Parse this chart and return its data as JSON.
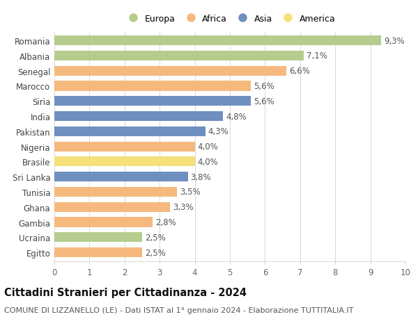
{
  "countries": [
    "Romania",
    "Albania",
    "Senegal",
    "Marocco",
    "Siria",
    "India",
    "Pakistan",
    "Nigeria",
    "Brasile",
    "Sri Lanka",
    "Tunisia",
    "Ghana",
    "Gambia",
    "Ucraina",
    "Egitto"
  ],
  "values": [
    9.3,
    7.1,
    6.6,
    5.6,
    5.6,
    4.8,
    4.3,
    4.0,
    4.0,
    3.8,
    3.5,
    3.3,
    2.8,
    2.5,
    2.5
  ],
  "labels": [
    "9,3%",
    "7,1%",
    "6,6%",
    "5,6%",
    "5,6%",
    "4,8%",
    "4,3%",
    "4,0%",
    "4,0%",
    "3,8%",
    "3,5%",
    "3,3%",
    "2,8%",
    "2,5%",
    "2,5%"
  ],
  "continents": [
    "Europa",
    "Europa",
    "Africa",
    "Africa",
    "Asia",
    "Asia",
    "Asia",
    "Africa",
    "America",
    "Asia",
    "Africa",
    "Africa",
    "Africa",
    "Europa",
    "Africa"
  ],
  "colors": {
    "Europa": "#b5cc8e",
    "Africa": "#f5b97e",
    "Asia": "#6e8fbf",
    "America": "#f5e07a"
  },
  "legend_order": [
    "Europa",
    "Africa",
    "Asia",
    "America"
  ],
  "xlim": [
    0,
    10
  ],
  "xticks": [
    0,
    1,
    2,
    3,
    4,
    5,
    6,
    7,
    8,
    9,
    10
  ],
  "title": "Cittadini Stranieri per Cittadinanza - 2024",
  "subtitle": "COMUNE DI LIZZANELLO (LE) - Dati ISTAT al 1° gennaio 2024 - Elaborazione TUTTITALIA.IT",
  "background_color": "#ffffff",
  "grid_color": "#d8d8d8",
  "bar_height": 0.65,
  "label_fontsize": 8.5,
  "tick_fontsize": 8.5,
  "title_fontsize": 10.5,
  "subtitle_fontsize": 8.0
}
